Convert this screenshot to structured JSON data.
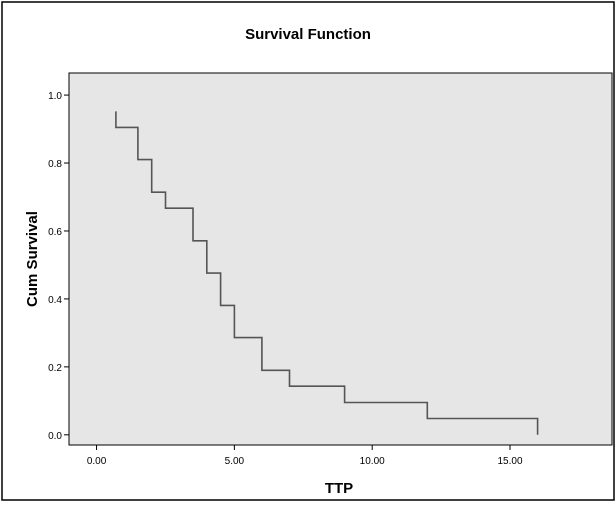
{
  "chart_data": {
    "type": "line",
    "step": true,
    "title": "Survival Function",
    "xlabel": "TTP",
    "ylabel": "Cum Survival",
    "xlim": [
      -1.0,
      18.7
    ],
    "ylim": [
      -0.03,
      1.065
    ],
    "x_ticks": [
      "0.00",
      "5.00",
      "10.00",
      "15.00"
    ],
    "y_ticks": [
      "0.0",
      "0.2",
      "0.4",
      "0.6",
      "0.8",
      "1.0"
    ],
    "x_tick_values": [
      0,
      5,
      10,
      15
    ],
    "y_tick_values": [
      0,
      0.2,
      0.4,
      0.6,
      0.8,
      1.0
    ],
    "grid": false,
    "colors": {
      "plot_background": "#e6e6e6",
      "line": "#555555",
      "frame": "#000000"
    },
    "series": [
      {
        "points": [
          {
            "x": 0.7,
            "y": 0.952
          },
          {
            "x": 0.7,
            "y": 0.905
          },
          {
            "x": 1.5,
            "y": 0.905
          },
          {
            "x": 1.5,
            "y": 0.81
          },
          {
            "x": 2.0,
            "y": 0.81
          },
          {
            "x": 2.0,
            "y": 0.714
          },
          {
            "x": 2.5,
            "y": 0.714
          },
          {
            "x": 2.5,
            "y": 0.667
          },
          {
            "x": 3.5,
            "y": 0.667
          },
          {
            "x": 3.5,
            "y": 0.571
          },
          {
            "x": 4.0,
            "y": 0.571
          },
          {
            "x": 4.0,
            "y": 0.476
          },
          {
            "x": 4.5,
            "y": 0.476
          },
          {
            "x": 4.5,
            "y": 0.381
          },
          {
            "x": 5.0,
            "y": 0.381
          },
          {
            "x": 5.0,
            "y": 0.286
          },
          {
            "x": 6.0,
            "y": 0.286
          },
          {
            "x": 6.0,
            "y": 0.19
          },
          {
            "x": 7.0,
            "y": 0.19
          },
          {
            "x": 7.0,
            "y": 0.143
          },
          {
            "x": 9.0,
            "y": 0.143
          },
          {
            "x": 9.0,
            "y": 0.095
          },
          {
            "x": 12.0,
            "y": 0.095
          },
          {
            "x": 12.0,
            "y": 0.048
          },
          {
            "x": 16.0,
            "y": 0.048
          },
          {
            "x": 16.0,
            "y": 0.0
          }
        ]
      }
    ]
  }
}
